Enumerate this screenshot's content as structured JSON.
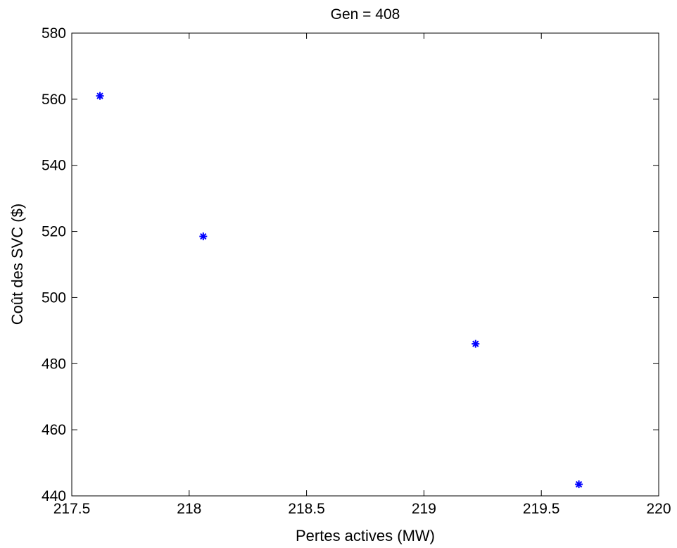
{
  "chart_data": {
    "type": "scatter",
    "title": "Gen = 408",
    "xlabel": "Pertes actives (MW)",
    "ylabel": "Coût des SVC ($)",
    "xlim": [
      217.5,
      220
    ],
    "ylim": [
      440,
      580
    ],
    "xticks": [
      217.5,
      218,
      218.5,
      219,
      219.5,
      220
    ],
    "yticks": [
      440,
      460,
      480,
      500,
      520,
      540,
      560,
      580
    ],
    "xtick_labels": [
      "217.5",
      "218",
      "218.5",
      "219",
      "219.5",
      "220"
    ],
    "ytick_labels": [
      "440",
      "460",
      "480",
      "500",
      "520",
      "540",
      "560",
      "580"
    ],
    "grid": false,
    "marker": "*",
    "marker_color": "#0000ff",
    "series": [
      {
        "x": [
          217.62,
          218.06,
          219.22,
          219.66
        ],
        "y": [
          561,
          518.5,
          486,
          443.5
        ]
      }
    ]
  }
}
